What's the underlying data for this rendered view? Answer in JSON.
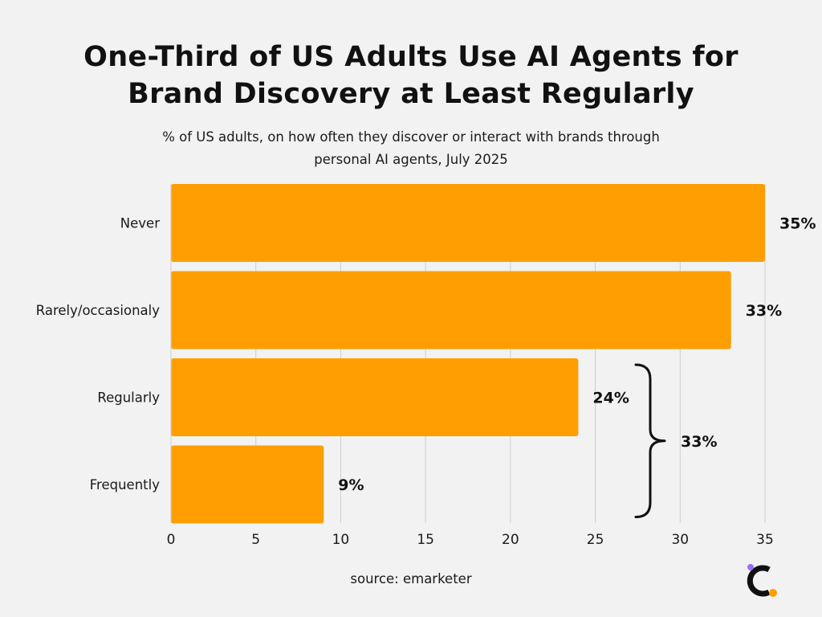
{
  "title_lines": [
    "One-Third of US Adults Use AI Agents for",
    "Brand Discovery at Least Regularly"
  ],
  "subtitle_lines": [
    "% of US adults, on how often they discover or interact with brands through",
    "personal AI agents, July 2025"
  ],
  "source": "source: emarketer",
  "chart_data": {
    "type": "bar",
    "orientation": "horizontal",
    "title": "One-Third of US Adults Use AI Agents for Brand Discovery at Least Regularly",
    "subtitle": "% of US adults, on how often they discover or interact with brands through personal AI agents, July 2025",
    "categories": [
      "Never",
      "Rarely/occasionaly",
      "Regularly",
      "Frequently"
    ],
    "values": [
      35,
      33,
      24,
      9
    ],
    "data_labels": [
      "35%",
      "33%",
      "24%",
      "9%"
    ],
    "xlim": [
      0,
      35
    ],
    "xticks": [
      0,
      5,
      10,
      15,
      20,
      25,
      30,
      35
    ],
    "grid": true,
    "annotation": {
      "label": "33%",
      "brace_spans": [
        "Regularly",
        "Frequently"
      ]
    },
    "bar_color": "#ff9e00"
  },
  "colors": {
    "background": "#f2f2f2",
    "bar": "#ff9e00",
    "grid": "#cfcfcf",
    "logo_dark": "#111111",
    "logo_purple": "#9b6dff",
    "logo_orange": "#ff9e00"
  },
  "logo_icon": "c-logo-icon"
}
